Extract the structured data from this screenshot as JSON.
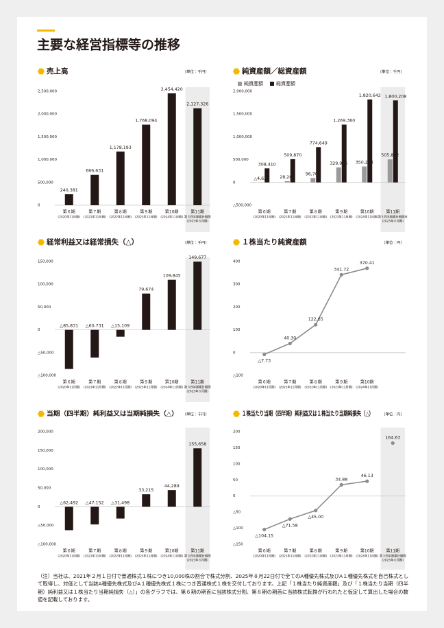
{
  "header": {
    "title": "主要な経営指標等の推移"
  },
  "chart_data": [
    {
      "type": "bar",
      "title": "売上高",
      "unit": "（単位：千円）",
      "categories": [
        "第６期",
        "第７期",
        "第８期",
        "第９期",
        "第10期",
        "第11期"
      ],
      "category_notes": [
        [
          "(2020年11月期)"
        ],
        [
          "(2021年11月期)"
        ],
        [
          "(2022年11月期)"
        ],
        [
          "(2023年11月期)"
        ],
        [
          "(2024年11月期)"
        ],
        [
          "第３四半期累計期間",
          "(2025年８月期)"
        ]
      ],
      "highlight_last_category": true,
      "ylim": [
        0,
        2500000
      ],
      "yticks": [
        0,
        {
          "value": 500000,
          "label": "500,000"
        },
        {
          "value": 1000000,
          "label": "1,000,000"
        },
        {
          "value": 1500000,
          "label": "1,500,000"
        },
        {
          "value": 2000000,
          "label": "2,000,000"
        },
        {
          "value": 2500000,
          "label": "2,500,000"
        }
      ],
      "series": [
        {
          "color": "#231815",
          "values": [
            240381,
            666631,
            1178193,
            1768094,
            2454420,
            2127326
          ],
          "value_labels": [
            "240,381",
            "666,631",
            "1,178,193",
            "1,768,094",
            "2,454,420",
            "2,127,326"
          ]
        }
      ]
    },
    {
      "type": "bar",
      "title": "純資産額／総資産額",
      "unit": "（単位：千円）",
      "categories": [
        "第６期",
        "第７期",
        "第８期",
        "第９期",
        "第10期",
        "第11期"
      ],
      "category_notes": [
        [
          "(2020年11月期)"
        ],
        [
          "(2021年11月期)"
        ],
        [
          "(2022年11月期)"
        ],
        [
          "(2023年11月期)"
        ],
        [
          "(2024年11月期)"
        ],
        [
          "第３四半期累計期間末",
          "(2025年８月期)"
        ]
      ],
      "highlight_last_category": true,
      "ylim": [
        -500000,
        2000000
      ],
      "yticks": [
        {
          "value": -500000,
          "label": "△500,000"
        },
        0,
        {
          "value": 500000,
          "label": "500,000"
        },
        {
          "value": 1000000,
          "label": "1,000,000"
        },
        {
          "value": 1500000,
          "label": "1,500,000"
        },
        {
          "value": 2000000,
          "label": "2,000,000"
        }
      ],
      "series": [
        {
          "name": "純資産額",
          "color": "#9a9a9a",
          "values": [
            -4639,
            28208,
            96700,
            329925,
            350274,
            505872
          ],
          "value_labels": [
            "△4,639",
            "28,208",
            "96,700",
            "329,925",
            "350,274",
            "505,872"
          ]
        },
        {
          "name": "総資産額",
          "color": "#231815",
          "values": [
            308410,
            509870,
            774649,
            1269360,
            1820642,
            1800208
          ],
          "value_labels": [
            "308,410",
            "509,870",
            "774,649",
            "1,269,360",
            "1,820,642",
            "1,800,208"
          ]
        }
      ]
    },
    {
      "type": "bar",
      "title": "経常利益又は経常損失（△）",
      "unit": "（単位：千円）",
      "categories": [
        "第６期",
        "第７期",
        "第８期",
        "第９期",
        "第10期",
        "第11期"
      ],
      "category_notes": [
        [
          "(2020年11月期)"
        ],
        [
          "(2021年11月期)"
        ],
        [
          "(2022年11月期)"
        ],
        [
          "(2023年11月期)"
        ],
        [
          "(2024年11月期)"
        ],
        [
          "第３四半期累計期間",
          "(2025年８月期)"
        ]
      ],
      "highlight_last_category": true,
      "ylim": [
        -100000,
        150000
      ],
      "yticks": [
        {
          "value": -100000,
          "label": "△100,000"
        },
        {
          "value": -50000,
          "label": "△50,000"
        },
        0,
        {
          "value": 50000,
          "label": "50,000"
        },
        {
          "value": 100000,
          "label": "100,000"
        },
        {
          "value": 150000,
          "label": "150,000"
        }
      ],
      "series": [
        {
          "color": "#231815",
          "values": [
            -85831,
            -60731,
            -15109,
            79674,
            109845,
            149677
          ],
          "value_labels": [
            "△85,831",
            "△60,731",
            "△15,109",
            "79,674",
            "109,845",
            "149,677"
          ]
        }
      ]
    },
    {
      "type": "line",
      "title": "１株当たり純資産額",
      "unit": "（単位：円）",
      "categories": [
        "第６期",
        "第７期",
        "第８期",
        "第９期",
        "第10期"
      ],
      "category_notes": [
        [
          "(2020年11月期)"
        ],
        [
          "(2021年11月期)"
        ],
        [
          "(2022年11月期)"
        ],
        [
          "(2023年11月期)"
        ],
        [
          "(2024年11月期)"
        ]
      ],
      "highlight_last_category": false,
      "ylim": [
        -100,
        400
      ],
      "yticks": [
        {
          "value": -100,
          "label": "△100"
        },
        0,
        100,
        200,
        300,
        400
      ],
      "series": [
        {
          "color": "#8c8c8c",
          "values": [
            -7.73,
            40.3,
            122.65,
            341.72,
            370.41
          ],
          "value_labels": [
            "△7.73",
            "40.30",
            "122.65",
            "341.72",
            "370.41"
          ]
        }
      ]
    },
    {
      "type": "bar",
      "title": "当期（四半期）純利益又は当期純損失（△）",
      "unit": "（単位：千円）",
      "categories": [
        "第６期",
        "第７期",
        "第８期",
        "第９期",
        "第10期",
        "第11期"
      ],
      "category_notes": [
        [
          "(2020年11月期)"
        ],
        [
          "(2021年11月期)"
        ],
        [
          "(2022年11月期)"
        ],
        [
          "(2023年11月期)"
        ],
        [
          "(2024年11月期)"
        ],
        [
          "第３四半期累計期間",
          "(2025年８月期)"
        ]
      ],
      "highlight_last_category": true,
      "ylim": [
        -100000,
        200000
      ],
      "yticks": [
        {
          "value": -100000,
          "label": "△100,000"
        },
        {
          "value": -50000,
          "label": "△50,000"
        },
        0,
        {
          "value": 50000,
          "label": "50,000"
        },
        {
          "value": 100000,
          "label": "100,000"
        },
        {
          "value": 150000,
          "label": "150,000"
        },
        {
          "value": 200000,
          "label": "200,000"
        }
      ],
      "series": [
        {
          "color": "#231815",
          "values": [
            -62492,
            -47152,
            -31498,
            33215,
            44289,
            155658
          ],
          "value_labels": [
            "△62,492",
            "△47,152",
            "△31,498",
            "33,215",
            "44,289",
            "155,658"
          ]
        }
      ]
    },
    {
      "type": "line",
      "title": "１株当たり当期（四半期）純利益又は１株当たり当期純損失（△）",
      "unit": "（単位：円）",
      "categories": [
        "第６期",
        "第７期",
        "第８期",
        "第９期",
        "第10期",
        "第11期"
      ],
      "category_notes": [
        [
          "(2020年11月期)"
        ],
        [
          "(2021年11月期)"
        ],
        [
          "(2022年11月期)"
        ],
        [
          "(2023年11月期)"
        ],
        [
          "(2024年11月期)"
        ],
        [
          "第３四半期累計期間",
          "(2025年８月期)"
        ]
      ],
      "highlight_last_category": true,
      "ylim": [
        -150,
        200
      ],
      "yticks": [
        {
          "value": -150,
          "label": "△150"
        },
        {
          "value": -100,
          "label": "△100"
        },
        {
          "value": -50,
          "label": "△50"
        },
        0,
        50,
        100,
        150,
        200
      ],
      "series": [
        {
          "color": "#8c8c8c",
          "values": [
            -104.15,
            -71.58,
            -45.0,
            34.88,
            46.13,
            null
          ],
          "value_labels": [
            "△104.15",
            "△71.58",
            "△45.00",
            "34.88",
            "46.13",
            null
          ]
        },
        {
          "color": "#8c8c8c",
          "values": [
            null,
            null,
            null,
            null,
            null,
            164.63
          ],
          "value_labels": [
            null,
            null,
            null,
            null,
            null,
            "164.63"
          ]
        }
      ]
    }
  ],
  "footnote": "（注）当社は、2021年２月１日付で普通株式１株につき10,000株の割合で株式分割、2025年８月22日付で全てのA種優先株式及びA１種優先株式を自己株式として取得し、対価として当該A種優先株式及びA１種優先株式１株につき普通株式１株を交付しております。上記「１株当たり純資産額」及び「１株当たり当期（四半期）純利益又は１株当たり当期純損失（△）」の各グラフでは、第６期の期首に当該株式分割、第８期の期首に当該株式転換が行われたと仮定して算出した場合の数値を記載しております。"
}
